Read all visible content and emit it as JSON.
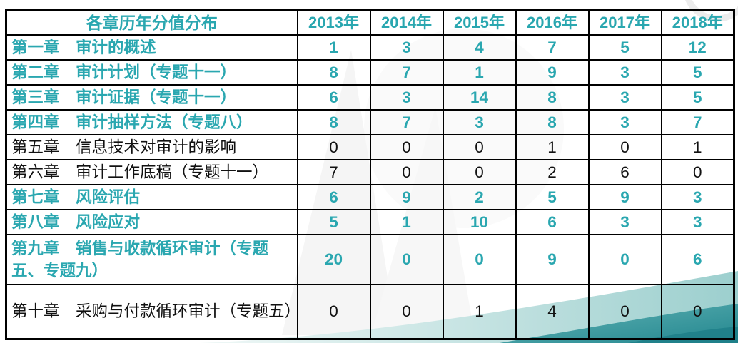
{
  "table": {
    "header": {
      "label": "各章历年分值分布",
      "years": [
        "2013年",
        "2014年",
        "2015年",
        "2016年",
        "2017年",
        "2018年"
      ]
    },
    "rows": [
      {
        "chapter": "第一章",
        "title": "审计的概述",
        "highlight": true,
        "values": [
          1,
          3,
          4,
          7,
          5,
          12
        ]
      },
      {
        "chapter": "第二章",
        "title": "审计计划（专题十一）",
        "highlight": true,
        "values": [
          8,
          7,
          1,
          9,
          3,
          5
        ]
      },
      {
        "chapter": "第三章",
        "title": "审计证据（专题十一）",
        "highlight": true,
        "values": [
          6,
          3,
          14,
          8,
          3,
          5
        ]
      },
      {
        "chapter": "第四章",
        "title": "审计抽样方法（专题八）",
        "highlight": true,
        "values": [
          8,
          7,
          3,
          8,
          3,
          7
        ]
      },
      {
        "chapter": "第五章",
        "title": "信息技术对审计的影响",
        "highlight": false,
        "values": [
          0,
          0,
          0,
          1,
          0,
          1
        ]
      },
      {
        "chapter": "第六章",
        "title": "审计工作底稿（专题十一）",
        "highlight": false,
        "values": [
          7,
          0,
          0,
          2,
          6,
          0
        ]
      },
      {
        "chapter": "第七章",
        "title": "风险评估",
        "highlight": true,
        "values": [
          6,
          9,
          2,
          5,
          9,
          3
        ]
      },
      {
        "chapter": "第八章",
        "title": "风险应对",
        "highlight": true,
        "values": [
          5,
          1,
          10,
          6,
          3,
          3
        ]
      },
      {
        "chapter": "第九章",
        "title": "销售与收款循环审计（专题五、专题九）",
        "highlight": true,
        "values": [
          20,
          0,
          0,
          9,
          0,
          6
        ]
      },
      {
        "chapter": "第十章",
        "title": "采购与付款循环审计（专题五）",
        "highlight": false,
        "values": [
          0,
          0,
          1,
          4,
          0,
          0
        ]
      }
    ]
  },
  "colors": {
    "accent": "#2aa7b0",
    "ink": "#111111",
    "border": "#000000",
    "wave_light_start": "#f0f8f7",
    "wave_light_end": "#9ccfce",
    "wave_dark_start": "#63b4b6",
    "wave_dark_end": "#23878f",
    "wave_deep": "#1f7f88"
  },
  "chart_data": {
    "type": "table",
    "title": "各章历年分值分布",
    "columns": [
      "各章历年分值分布",
      "2013年",
      "2014年",
      "2015年",
      "2016年",
      "2017年",
      "2018年"
    ],
    "rows": [
      [
        "第一章　审计的概述",
        1,
        3,
        4,
        7,
        5,
        12
      ],
      [
        "第二章　审计计划（专题十一）",
        8,
        7,
        1,
        9,
        3,
        5
      ],
      [
        "第三章　审计证据（专题十一）",
        6,
        3,
        14,
        8,
        3,
        5
      ],
      [
        "第四章　审计抽样方法（专题八）",
        8,
        7,
        3,
        8,
        3,
        7
      ],
      [
        "第五章　信息技术对审计的影响",
        0,
        0,
        0,
        1,
        0,
        1
      ],
      [
        "第六章　审计工作底稿（专题十一）",
        7,
        0,
        0,
        2,
        6,
        0
      ],
      [
        "第七章　风险评估",
        6,
        9,
        2,
        5,
        9,
        3
      ],
      [
        "第八章　风险应对",
        5,
        1,
        10,
        6,
        3,
        3
      ],
      [
        "第九章　销售与收款循环审计（专题五、专题九）",
        20,
        0,
        0,
        9,
        0,
        6
      ],
      [
        "第十章　采购与付款循环审计（专题五）",
        0,
        0,
        1,
        4,
        0,
        0
      ]
    ],
    "highlighted_rows": [
      "第一章",
      "第二章",
      "第三章",
      "第四章",
      "第七章",
      "第八章",
      "第九章"
    ],
    "legend_position": "none",
    "grid": true
  }
}
